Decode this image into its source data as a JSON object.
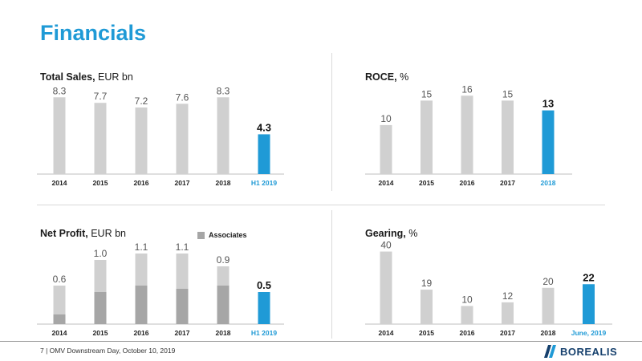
{
  "page": {
    "title": "Financials",
    "footer": "7  | OMV Downstream Day, October 10, 2019",
    "logo_text": "BOREALIS",
    "colors": {
      "accent": "#1f9ad6",
      "bar": "#d0d0d0",
      "associates": "#a6a6a6",
      "highlight": "#1f9ad6"
    }
  },
  "chart_data": [
    {
      "id": "total-sales",
      "type": "bar",
      "title_bold": "Total Sales,",
      "title_rest": " EUR bn",
      "categories": [
        "2014",
        "2015",
        "2016",
        "2017",
        "2018",
        "H1 2019"
      ],
      "values": [
        8.3,
        7.7,
        7.2,
        7.6,
        8.3,
        4.3
      ],
      "value_labels": [
        "8.3",
        "7.7",
        "7.2",
        "7.6",
        "8.3",
        "4.3"
      ],
      "highlight_index": 5,
      "ylim": [
        0,
        9.8
      ]
    },
    {
      "id": "roce",
      "type": "bar",
      "title_bold": "ROCE,",
      "title_rest": " %",
      "categories": [
        "2014",
        "2015",
        "2016",
        "2017",
        "2018"
      ],
      "values": [
        10,
        15,
        16,
        15,
        13
      ],
      "value_labels": [
        "10",
        "15",
        "16",
        "15",
        "13"
      ],
      "highlight_index": 4,
      "ylim": [
        0,
        18.5
      ]
    },
    {
      "id": "net-profit",
      "type": "bar",
      "title_bold": "Net Profit,",
      "title_rest": " EUR bn",
      "legend": "Associates",
      "categories": [
        "2014",
        "2015",
        "2016",
        "2017",
        "2018",
        "H1 2019"
      ],
      "values": [
        0.6,
        1.0,
        1.1,
        1.1,
        0.9,
        0.5
      ],
      "associates": [
        0.15,
        0.5,
        0.6,
        0.55,
        0.6,
        0
      ],
      "value_labels": [
        "0.6",
        "1.0",
        "1.1",
        "1.1",
        "0.9",
        "0.5"
      ],
      "highlight_index": 5,
      "ylim": [
        0,
        1.3
      ]
    },
    {
      "id": "gearing",
      "type": "bar",
      "title_bold": "Gearing,",
      "title_rest": " %",
      "categories": [
        "2014",
        "2015",
        "2016",
        "2017",
        "2018",
        "June, 2019"
      ],
      "values": [
        40,
        19,
        10,
        12,
        20,
        22
      ],
      "value_labels": [
        "40",
        "19",
        "10",
        "12",
        "20",
        "22"
      ],
      "highlight_index": 5,
      "ylim": [
        0,
        46
      ]
    }
  ]
}
